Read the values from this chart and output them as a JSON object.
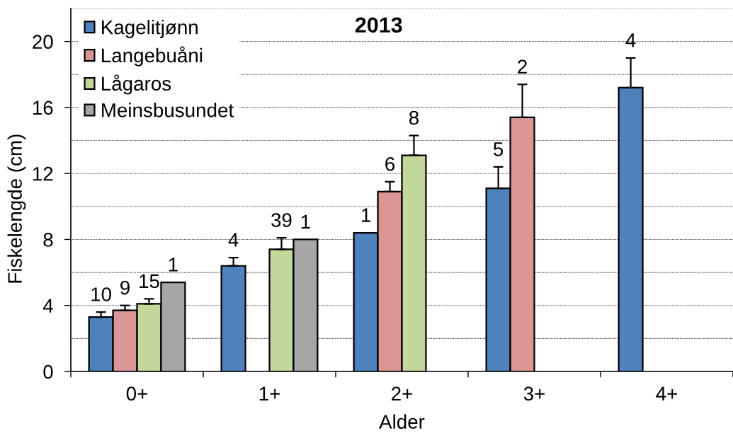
{
  "chart_data": {
    "type": "bar",
    "title": "2013",
    "xlabel": "Alder",
    "ylabel": "Fiskelengde (cm)",
    "categories": [
      "0+",
      "1+",
      "2+",
      "3+",
      "4+"
    ],
    "series": [
      {
        "name": "Kagelitjønn",
        "color": "#4f81bd",
        "values": [
          3.3,
          6.4,
          8.4,
          11.1,
          17.2
        ],
        "errors": [
          [
            3.3,
            3.6
          ],
          [
            6.4,
            6.9
          ],
          null,
          [
            11.1,
            12.4
          ],
          [
            17.2,
            19.0
          ]
        ]
      },
      {
        "name": "Langebuåni",
        "color": "#d99694",
        "values": [
          3.7,
          null,
          10.9,
          15.4,
          null
        ],
        "errors": [
          [
            3.7,
            4.0
          ],
          null,
          [
            10.9,
            11.5
          ],
          [
            15.4,
            17.4
          ],
          null
        ]
      },
      {
        "name": "Lågaros",
        "color": "#c3d69b",
        "values": [
          4.1,
          7.4,
          13.1,
          null,
          null
        ],
        "errors": [
          [
            4.1,
            4.4
          ],
          [
            7.4,
            8.1
          ],
          [
            13.1,
            14.3
          ],
          null,
          null
        ]
      },
      {
        "name": "Meinsbusundet",
        "color": "#a6a6a6",
        "values": [
          5.4,
          8.0,
          null,
          null,
          null
        ]
      }
    ],
    "annotations": [
      "10",
      "9",
      "15",
      "1",
      "4",
      "39",
      "1",
      "1",
      "6",
      "8",
      "5",
      "2",
      "4"
    ],
    "ylim": [
      0,
      22
    ],
    "yticks": [
      0,
      {
        "value": 2,
        "label": null
      },
      4,
      {
        "value": 6,
        "label": null
      },
      8,
      {
        "value": 10,
        "label": null
      },
      12,
      {
        "value": 14,
        "label": null
      },
      16,
      {
        "value": 18,
        "label": null
      },
      20,
      {
        "value": 22,
        "label": null
      }
    ],
    "grid": "y",
    "legend": "top left"
  }
}
